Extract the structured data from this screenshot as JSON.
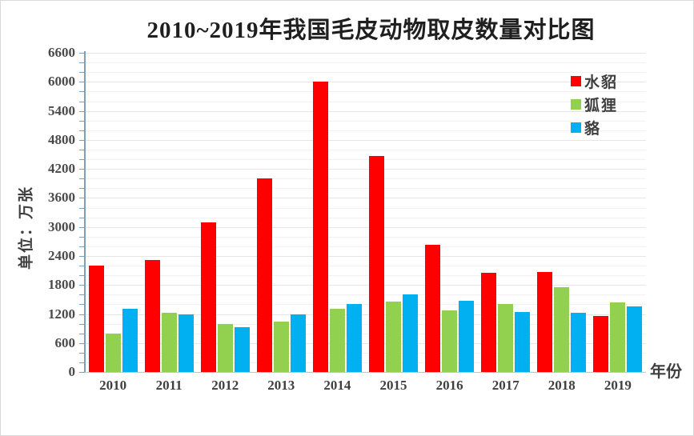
{
  "title": "2010~2019年我国毛皮动物取皮数量对比图",
  "y_axis_title": "单位：万张",
  "x_axis_title": "年份",
  "colors": {
    "mink": "#FF0000",
    "fox": "#92D050",
    "raccoon": "#00B0F0",
    "axis_line": "#79a0bc",
    "baseline": "#c6c6c6",
    "gridline": "#ececec",
    "text": "#3f3f3f"
  },
  "chart_data": {
    "type": "bar",
    "title": "2010~2019年我国毛皮动物取皮数量对比图",
    "xlabel": "年份",
    "ylabel": "单位：万张",
    "categories": [
      "2010",
      "2011",
      "2012",
      "2013",
      "2014",
      "2015",
      "2016",
      "2017",
      "2018",
      "2019"
    ],
    "series": [
      {
        "name": "水貂",
        "color": "#FF0000",
        "values": [
          2200,
          2320,
          3100,
          4000,
          6000,
          4470,
          2630,
          2055,
          2070,
          1160
        ]
      },
      {
        "name": "狐狸",
        "color": "#92D050",
        "values": [
          800,
          1225,
          1000,
          1050,
          1310,
          1450,
          1270,
          1405,
          1750,
          1440
        ]
      },
      {
        "name": "貉",
        "color": "#00B0F0",
        "values": [
          1300,
          1200,
          920,
          1200,
          1400,
          1600,
          1480,
          1245,
          1230,
          1350
        ]
      }
    ],
    "ylim": [
      0,
      6600
    ],
    "y_ticks": [
      "0",
      "600",
      "1200",
      "1800",
      "2400",
      "3000",
      "3600",
      "4200",
      "4800",
      "5400",
      "6000",
      "6600"
    ],
    "ytick_interval": 600,
    "gridline_interval": 200,
    "grid": true,
    "legend_position": "top-right",
    "legend_entries": [
      "水貂",
      "狐狸",
      "貉"
    ]
  }
}
